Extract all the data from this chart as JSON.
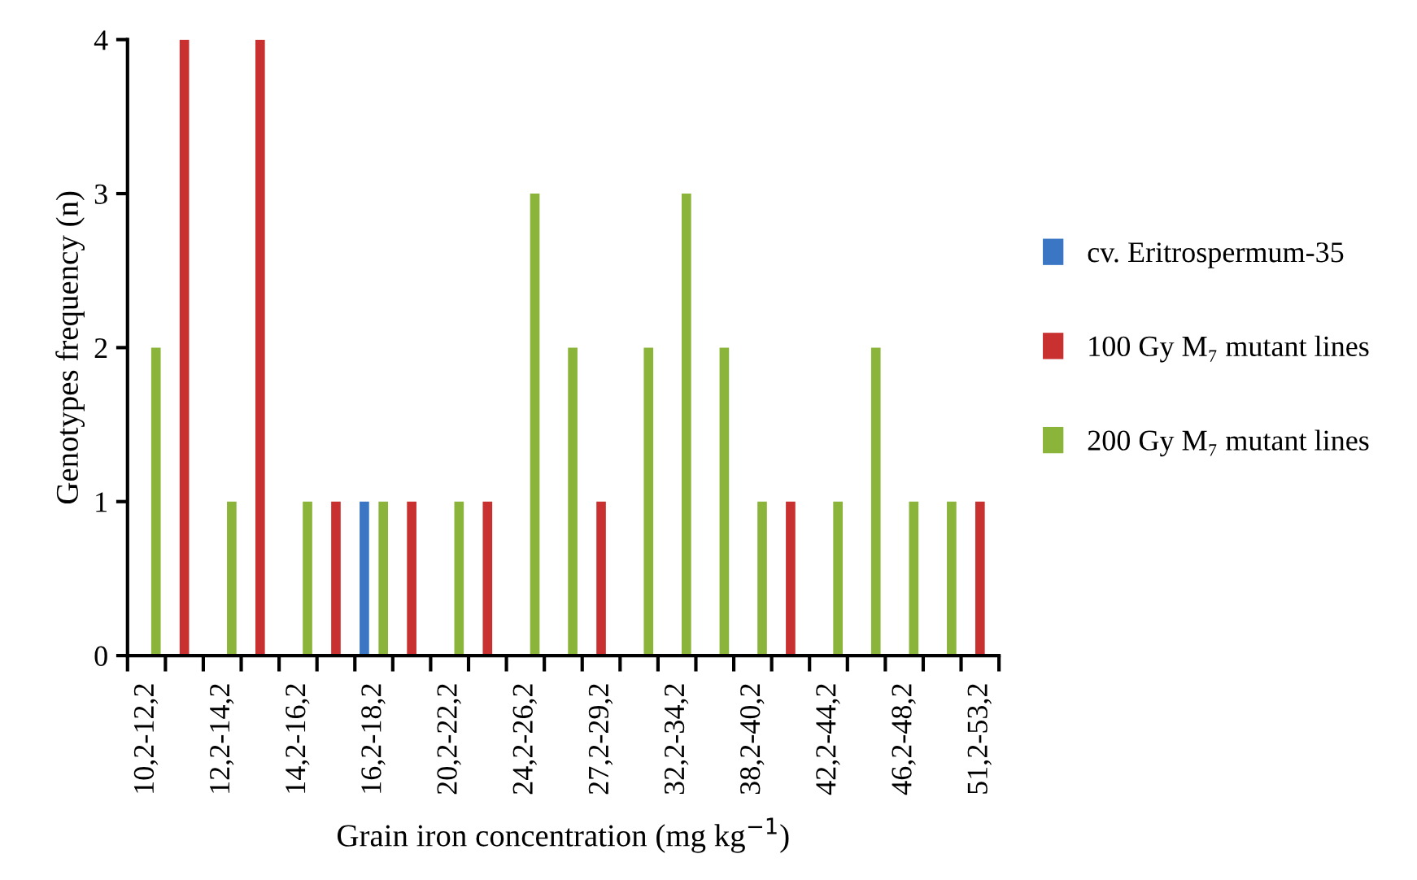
{
  "chart_data": {
    "type": "bar",
    "xlabel": "Grain iron concentration (mg kg$^{−1}$)",
    "ylabel": "Genotypes frequency (n)",
    "categories": [
      "10,2-12,2",
      null,
      "12,2-14,2",
      null,
      "14,2-16,2",
      null,
      "16,2-18,2",
      null,
      "20,2-22,2",
      null,
      "24,2-26,2",
      null,
      "27,2-29,2",
      null,
      "32,2-34,2",
      null,
      "38,2-40,2",
      null,
      "42,2-44,2",
      null,
      "46,2-48,2",
      null,
      "51,2-53,2"
    ],
    "series": [
      {
        "name": "cv. Eritrospermum-35",
        "color": "#3a76c4",
        "values": [
          0,
          0,
          0,
          0,
          0,
          0,
          1,
          0,
          0,
          0,
          0,
          0,
          0,
          0,
          0,
          0,
          0,
          0,
          0,
          0,
          0,
          0,
          0
        ]
      },
      {
        "name": "100 Gy M₇ mutant lines",
        "color": "#c8312f",
        "values": [
          0,
          4,
          0,
          4,
          0,
          1,
          0,
          1,
          0,
          1,
          0,
          0,
          1,
          0,
          0,
          0,
          0,
          1,
          0,
          0,
          0,
          0,
          1
        ]
      },
      {
        "name": "200 Gy M₇ mutant lines",
        "color": "#8ab43a",
        "values": [
          2,
          0,
          1,
          0,
          1,
          0,
          1,
          0,
          1,
          0,
          3,
          2,
          0,
          2,
          3,
          2,
          1,
          0,
          1,
          2,
          1,
          1,
          0
        ]
      }
    ],
    "ylim": [
      0,
      4
    ],
    "yticks": [
      0,
      1,
      2,
      3,
      4
    ],
    "grid": false,
    "legend": "right"
  }
}
